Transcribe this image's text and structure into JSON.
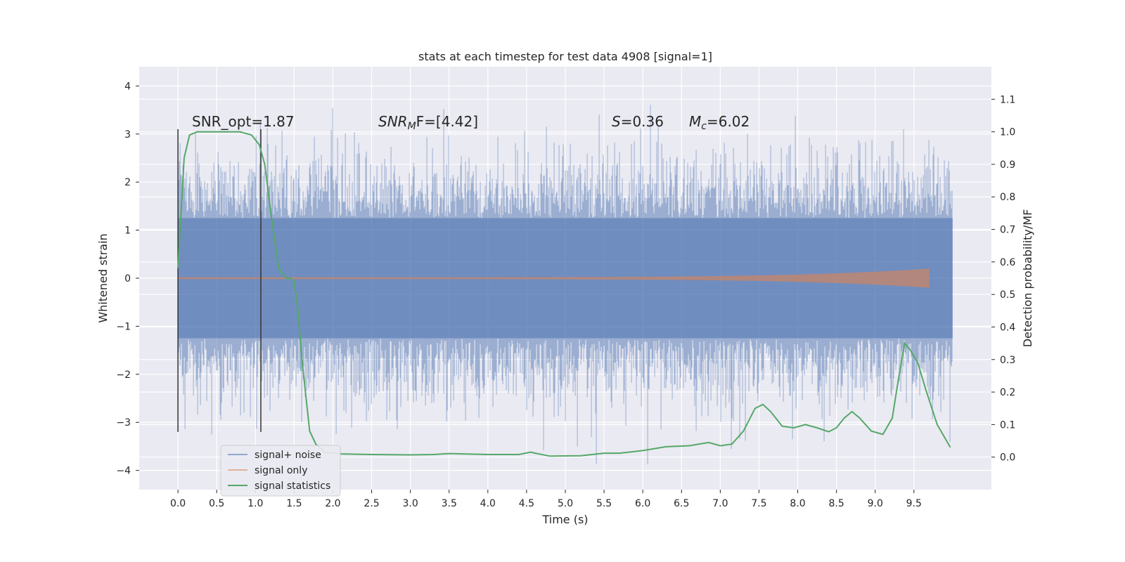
{
  "chart_data": {
    "type": "line",
    "title": "stats at each timestep for test data 4908 [signal=1]",
    "xlabel": "Time (s)",
    "ylabel": "Whitened strain",
    "y2label": "Detection probability/MF",
    "xlim": [
      -0.5,
      10.5
    ],
    "ylim": [
      -4.4,
      4.4
    ],
    "y2lim": [
      -0.1,
      1.2
    ],
    "x_ticks": [
      0.0,
      0.5,
      1.0,
      1.5,
      2.0,
      2.5,
      3.0,
      3.5,
      4.0,
      4.5,
      5.0,
      5.5,
      6.0,
      6.5,
      7.0,
      7.5,
      8.0,
      8.5,
      9.0,
      9.5
    ],
    "y_ticks": [
      4,
      3,
      2,
      1,
      0,
      -1,
      -2,
      -3,
      -4
    ],
    "y2_ticks": [
      1.1,
      1.0,
      0.9,
      0.8,
      0.7,
      0.6,
      0.5,
      0.4,
      0.3,
      0.2,
      0.1,
      0.0
    ],
    "grid": true,
    "legend_position": "bottom-left",
    "annotations": {
      "snr_opt": "SNR_opt=1.87",
      "snr_mf_base": "SNR",
      "snr_mf_sub": "M",
      "snr_mf_rest": "F=[4.42]",
      "s_sym": "S",
      "s_val": "=0.36",
      "mc_sym": "M",
      "mc_sub": "c",
      "mc_val": "=6.02"
    },
    "vertical_lines": [
      0.0,
      1.07
    ],
    "noise": {
      "name": "signal+ noise",
      "x_range": [
        0.0,
        10.0
      ],
      "sigma": 0.9,
      "core_amplitude": 1.25,
      "color": "#4c72b0"
    },
    "signal": {
      "name": "signal only",
      "x_range": [
        0.0,
        9.7
      ],
      "peak_amplitude": 0.18,
      "color": "#dd8452"
    },
    "statistics": {
      "name": "signal statistics",
      "color": "#55a868",
      "axis": "right",
      "x": [
        0.0,
        0.08,
        0.15,
        0.25,
        0.4,
        0.6,
        0.8,
        0.95,
        1.05,
        1.12,
        1.2,
        1.3,
        1.4,
        1.45,
        1.5,
        1.55,
        1.6,
        1.7,
        1.78,
        1.9,
        2.1,
        2.5,
        3.0,
        3.3,
        3.5,
        4.0,
        4.4,
        4.55,
        4.8,
        5.2,
        5.5,
        5.7,
        6.0,
        6.3,
        6.6,
        6.85,
        7.0,
        7.15,
        7.3,
        7.45,
        7.55,
        7.65,
        7.8,
        7.95,
        8.1,
        8.25,
        8.4,
        8.5,
        8.6,
        8.7,
        8.8,
        8.95,
        9.1,
        9.22,
        9.3,
        9.38,
        9.45,
        9.55,
        9.65,
        9.8,
        9.97
      ],
      "values": [
        0.58,
        0.92,
        0.99,
        1.0,
        1.0,
        1.0,
        1.0,
        0.99,
        0.96,
        0.9,
        0.75,
        0.58,
        0.55,
        0.55,
        0.54,
        0.45,
        0.3,
        0.08,
        0.04,
        0.015,
        0.01,
        0.008,
        0.007,
        0.008,
        0.011,
        0.008,
        0.008,
        0.015,
        0.003,
        0.004,
        0.012,
        0.012,
        0.02,
        0.032,
        0.035,
        0.045,
        0.035,
        0.04,
        0.08,
        0.15,
        0.162,
        0.14,
        0.095,
        0.09,
        0.1,
        0.09,
        0.078,
        0.09,
        0.12,
        0.14,
        0.12,
        0.08,
        0.07,
        0.12,
        0.24,
        0.35,
        0.33,
        0.29,
        0.21,
        0.1,
        0.03
      ]
    }
  },
  "legend": {
    "items": [
      {
        "label": "signal+ noise",
        "color": "#4c72b0",
        "opacity": 0.55
      },
      {
        "label": "signal only",
        "color": "#dd8452",
        "opacity": 0.55
      },
      {
        "label": "signal statistics",
        "color": "#55a868",
        "opacity": 1
      }
    ]
  },
  "colors": {
    "plot_background": "#eaeaf2",
    "grid": "#ffffff",
    "vertical_line": "#333333"
  }
}
